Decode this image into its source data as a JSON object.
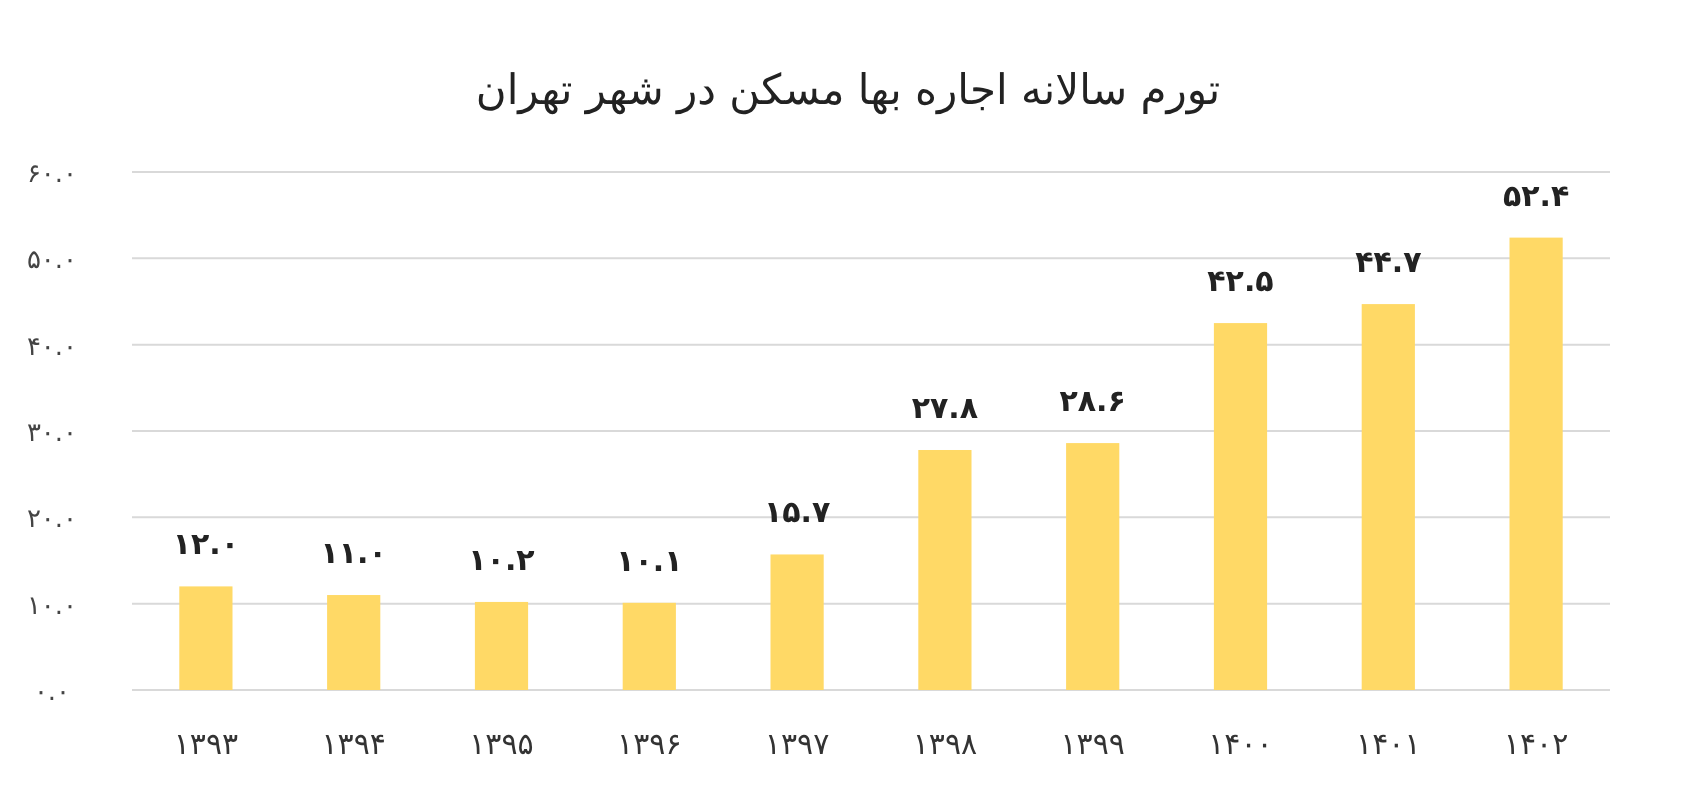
{
  "chart_data": {
    "type": "bar",
    "title": "تورم سالانه اجاره بها مسکن در شهر تهران",
    "categories": [
      "۱۳۹۳",
      "۱۳۹۴",
      "۱۳۹۵",
      "۱۳۹۶",
      "۱۳۹۷",
      "۱۳۹۸",
      "۱۳۹۹",
      "۱۴۰۰",
      "۱۴۰۱",
      "۱۴۰۲"
    ],
    "values": [
      12.0,
      11.0,
      10.2,
      10.1,
      15.7,
      27.8,
      28.6,
      42.5,
      44.7,
      52.4
    ],
    "value_labels": [
      "۱۲.۰",
      "۱۱.۰",
      "۱۰.۲",
      "۱۰.۱",
      "۱۵.۷",
      "۲۷.۸",
      "۲۸.۶",
      "۴۲.۵",
      "۴۴.۷",
      "۵۲.۴"
    ],
    "color": "#ffd966",
    "ylim": [
      0,
      60
    ],
    "yticks": [
      {
        "value": 0,
        "label": "۰.۰"
      },
      {
        "value": 10,
        "label": "۱۰.۰"
      },
      {
        "value": 20,
        "label": "۲۰.۰"
      },
      {
        "value": 30,
        "label": "۳۰.۰"
      },
      {
        "value": 40,
        "label": "۴۰.۰"
      },
      {
        "value": 50,
        "label": "۵۰.۰"
      },
      {
        "value": 60,
        "label": "۶۰.۰"
      }
    ],
    "grid": "y"
  }
}
